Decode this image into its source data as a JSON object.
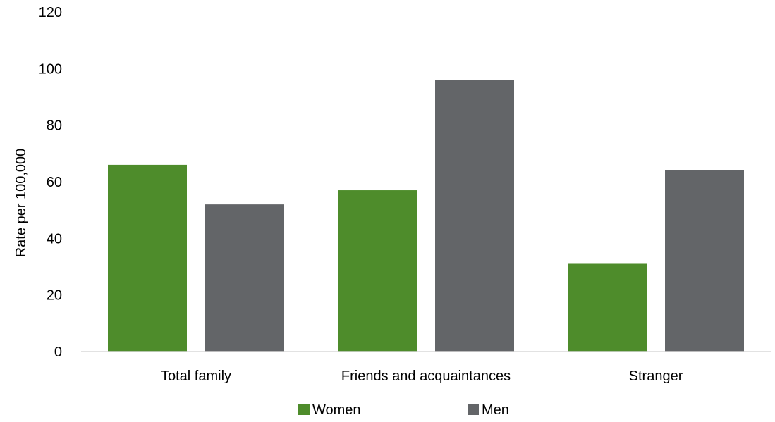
{
  "chart_data": {
    "type": "bar",
    "title": "",
    "xlabel": "",
    "ylabel": "Rate per 100,000",
    "categories": [
      "Total family",
      "Friends and acquaintances",
      "Stranger"
    ],
    "series": [
      {
        "name": "Women",
        "color": "#4e8c2b",
        "values": [
          66,
          57,
          31
        ]
      },
      {
        "name": "Men",
        "color": "#636568",
        "values": [
          52,
          96,
          64
        ]
      }
    ],
    "ylim": [
      0,
      120
    ],
    "yticks": [
      0,
      20,
      40,
      60,
      80,
      100,
      120
    ],
    "grid": false,
    "legend_position": "bottom"
  }
}
